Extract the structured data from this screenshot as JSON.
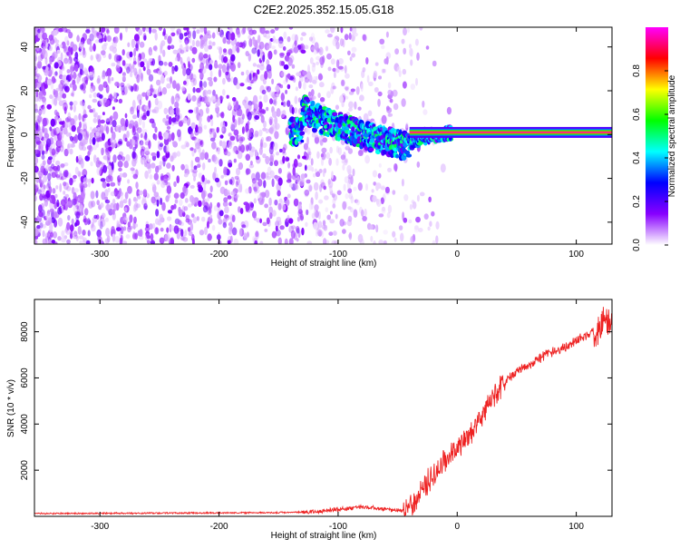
{
  "title": "C2E2.2025.352.15.05.G18",
  "chart_data": [
    {
      "type": "heatmap",
      "xlabel": "Height of straight line (km)",
      "ylabel": "Frequency (Hz)",
      "xlim": [
        -355,
        130
      ],
      "ylim": [
        -50,
        49
      ],
      "xticks": [
        -300,
        -200,
        -100,
        0,
        100
      ],
      "yticks": [
        -40,
        -20,
        0,
        20,
        40
      ],
      "xtick_labels": [
        "-300",
        "-200",
        "-100",
        "0",
        "100"
      ],
      "ytick_labels": [
        "-40",
        "-20",
        "0",
        "20",
        "40"
      ],
      "colorbar": {
        "label": "Normalized spectral amplitude",
        "range": [
          0,
          1
        ],
        "ticks": [
          0.0,
          0.2,
          0.4,
          0.6,
          0.8
        ],
        "tick_labels": [
          "0.0",
          "0.2",
          "0.4",
          "0.6",
          "0.8"
        ],
        "colormap": [
          "#ffffff",
          "#8800ff",
          "#0000ff",
          "#00ffff",
          "#00ff00",
          "#ffff00",
          "#ff0000",
          "#ff00ff"
        ]
      },
      "ridge": {
        "description_points_x": [
          -130,
          -120,
          -100,
          -80,
          -60,
          -45,
          -30,
          -15,
          0,
          50,
          100,
          125
        ],
        "frequency_y": [
          12,
          8,
          4,
          0,
          -3,
          -5,
          -1,
          0,
          1,
          1,
          1,
          1
        ]
      },
      "noise_region_x": [
        -355,
        -130
      ],
      "grid": false
    },
    {
      "type": "line",
      "xlabel": "Height of straight line (km)",
      "ylabel": "SNR (10 * v/v)",
      "xlim": [
        -355,
        130
      ],
      "ylim": [
        0,
        9400
      ],
      "xticks": [
        -300,
        -200,
        -100,
        0,
        100
      ],
      "yticks": [
        2000,
        4000,
        6000,
        8000
      ],
      "xtick_labels": [
        "-300",
        "-200",
        "-100",
        "0",
        "100"
      ],
      "ytick_labels": [
        "2000",
        "4000",
        "6000",
        "8000"
      ],
      "color": "#ee2222",
      "grid": false,
      "series": [
        {
          "x": [
            -355,
            -300,
            -250,
            -200,
            -150,
            -120,
            -100,
            -80,
            -60,
            -45,
            -35,
            -25,
            -15,
            -5,
            0,
            10,
            20,
            30,
            40,
            50,
            60,
            70,
            80,
            90,
            100,
            110,
            120,
            125,
            130
          ],
          "values": [
            120,
            130,
            140,
            150,
            160,
            200,
            300,
            400,
            300,
            250,
            700,
            1500,
            2100,
            2600,
            2900,
            3500,
            4300,
            5200,
            5800,
            6300,
            6600,
            6900,
            7100,
            7300,
            7600,
            7900,
            8200,
            8600,
            8300
          ]
        }
      ]
    }
  ]
}
